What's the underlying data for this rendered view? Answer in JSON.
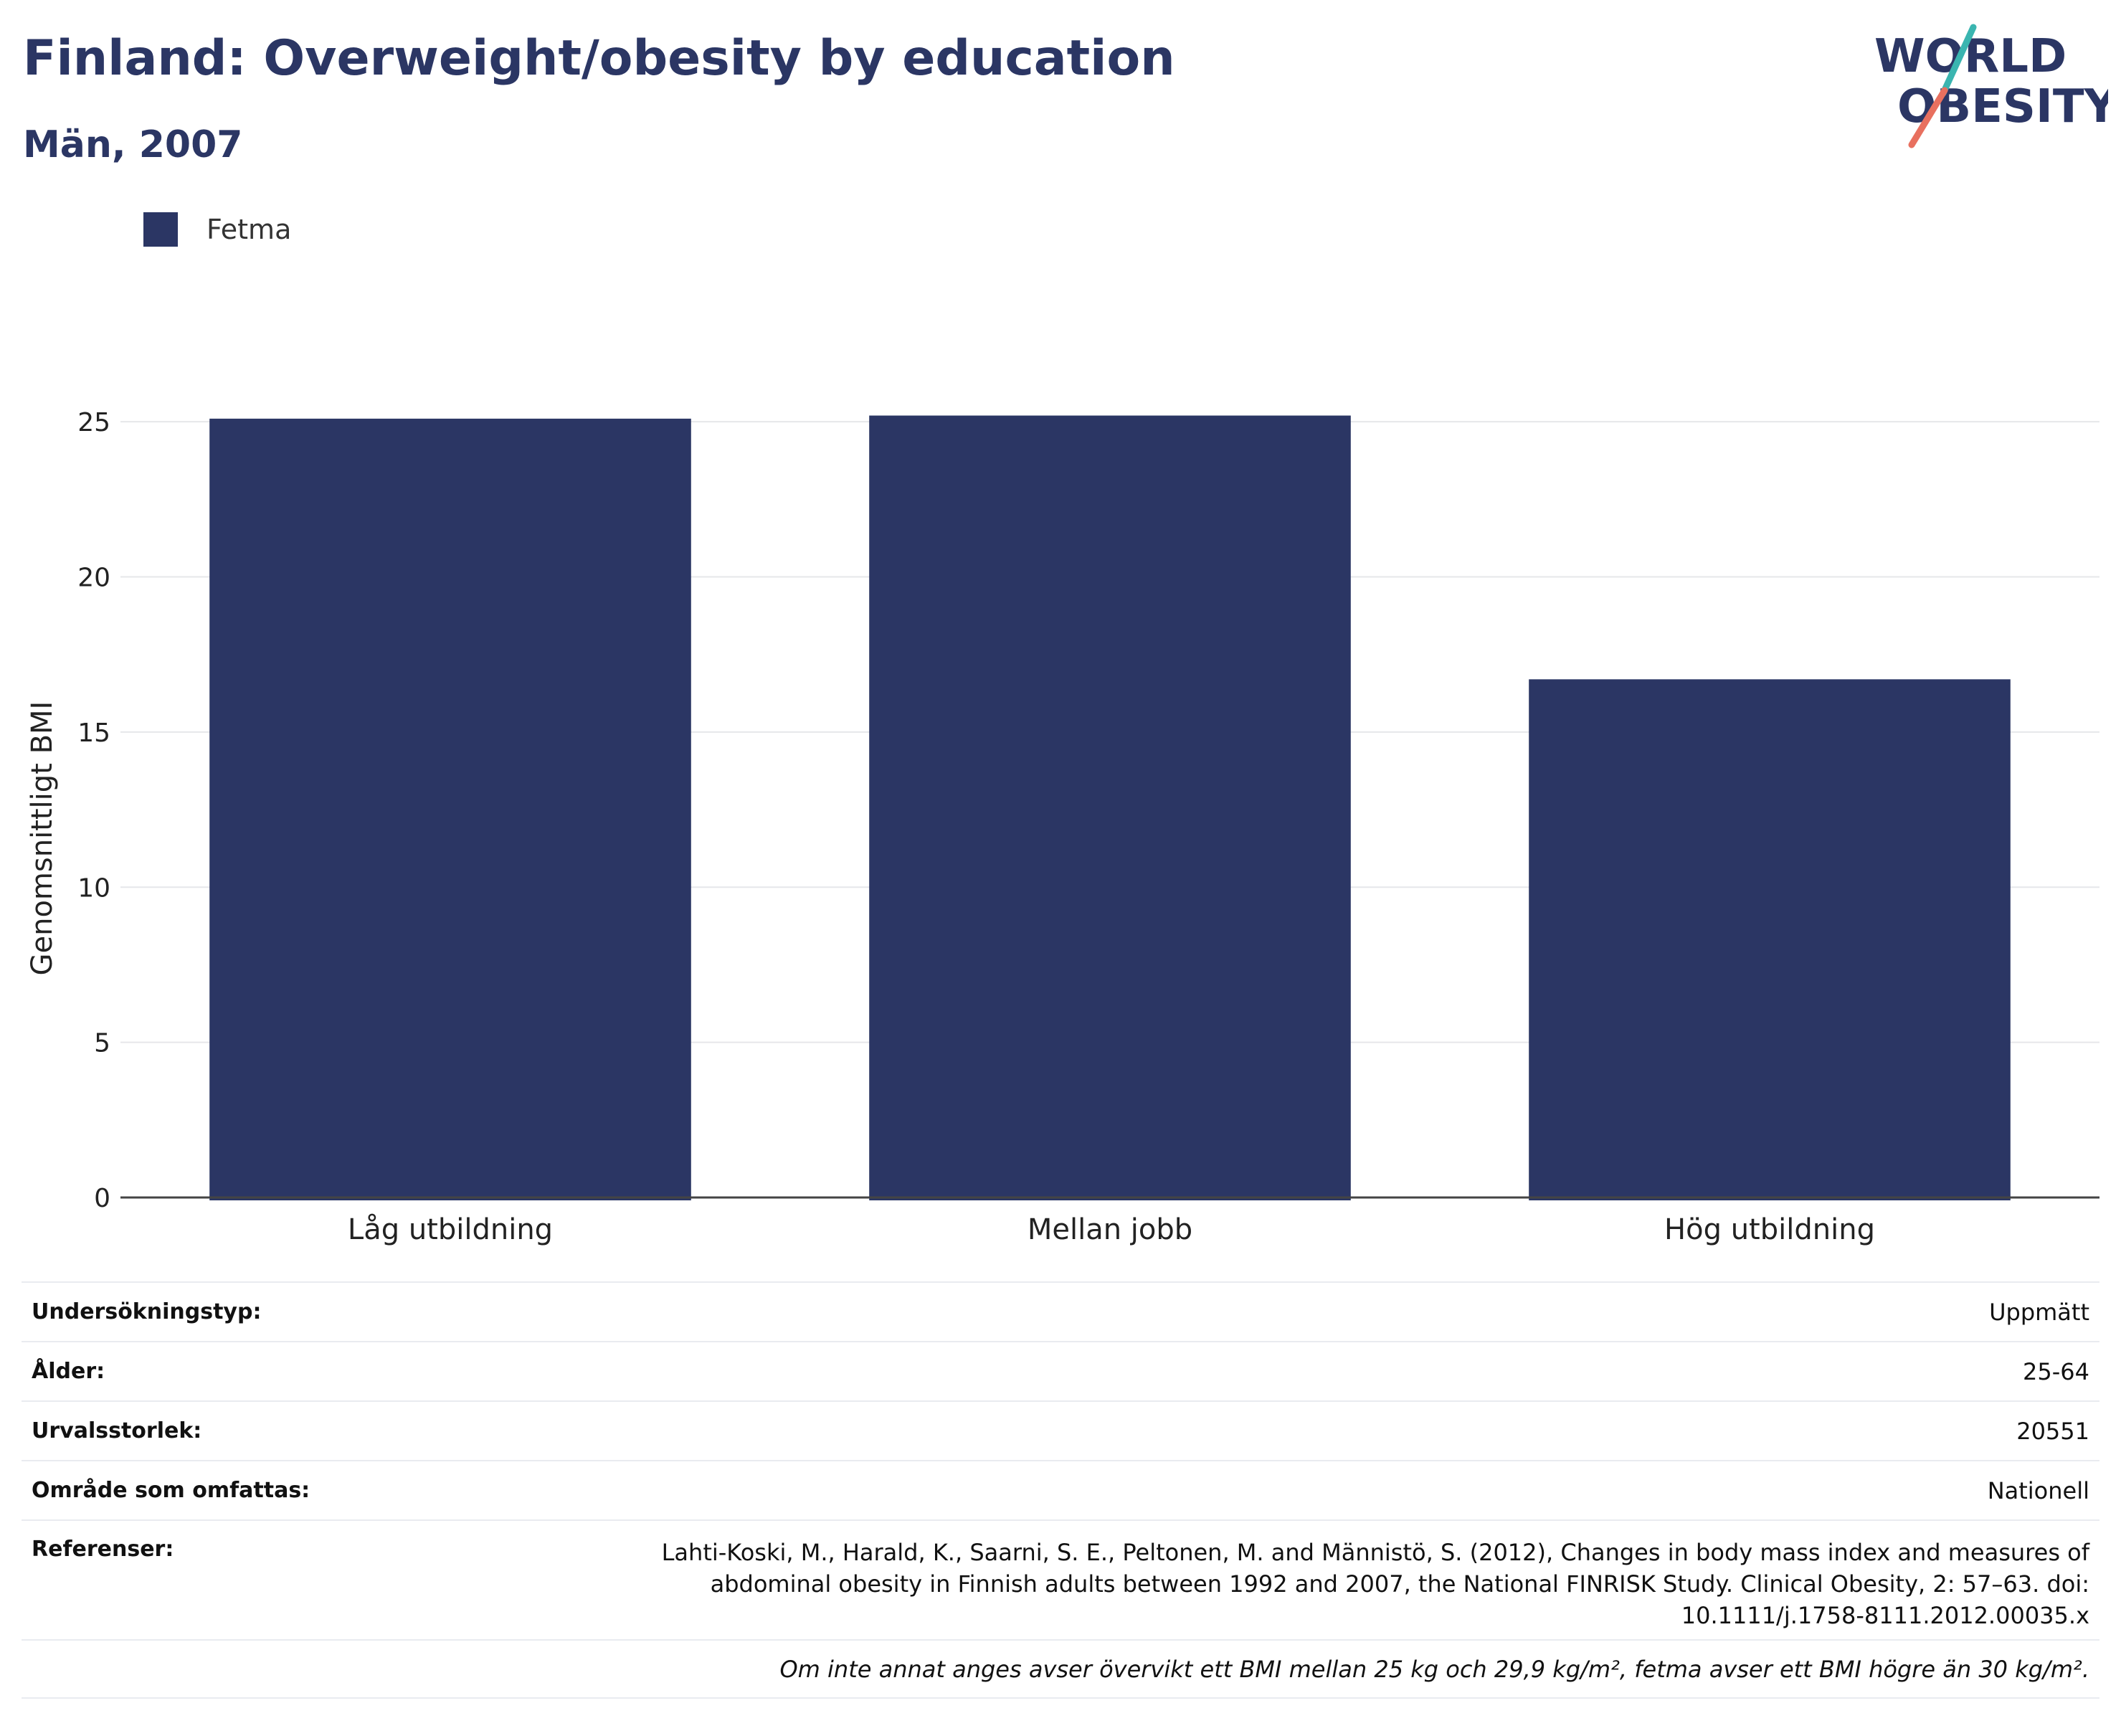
{
  "header": {
    "title": "Finland: Overweight/obesity by education",
    "subtitle": "Män, 2007"
  },
  "logo": {
    "line1": "WORLD",
    "line2": "OBESITY",
    "colors": {
      "text": "#2b3664",
      "slash_top": "#3ab5b0",
      "slash_bottom": "#e8705f"
    }
  },
  "legend": {
    "items": [
      {
        "label": "Fetma",
        "color": "#2b3664"
      }
    ]
  },
  "chart_data": {
    "type": "bar",
    "categories": [
      "Låg utbildning",
      "Mellan jobb",
      "Hög utbildning"
    ],
    "series": [
      {
        "name": "Fetma",
        "values": [
          25.1,
          25.2,
          16.7
        ],
        "color": "#2b3664"
      }
    ],
    "title": "Finland: Overweight/obesity by education",
    "subtitle": "Män, 2007",
    "xlabel": "",
    "ylabel": "Genomsnittligt BMI",
    "ylim": [
      0,
      27.5
    ],
    "yticks": [
      0,
      5,
      10,
      15,
      20,
      25
    ],
    "grid": true,
    "legend_position": "top-left"
  },
  "info": {
    "rows": [
      {
        "key": "Undersökningstyp:",
        "value": "Uppmätt"
      },
      {
        "key": "Ålder:",
        "value": "25-64"
      },
      {
        "key": "Urvalsstorlek:",
        "value": "20551"
      },
      {
        "key": "Område som omfattas:",
        "value": "Nationell"
      }
    ],
    "references": {
      "key": "Referenser:",
      "value": "Lahti-Koski, M., Harald, K., Saarni, S. E., Peltonen, M. and Männistö, S. (2012), Changes in body mass index and measures of abdominal obesity in Finnish adults between 1992 and 2007, the National FINRISK Study. Clinical Obesity, 2: 57–63. doi: 10.1111/j.1758-8111.2012.00035.x"
    },
    "footnote": "Om inte annat anges avser övervikt ett BMI mellan 25 kg och 29,9 kg/m², fetma avser ett BMI högre än 30 kg/m²."
  }
}
